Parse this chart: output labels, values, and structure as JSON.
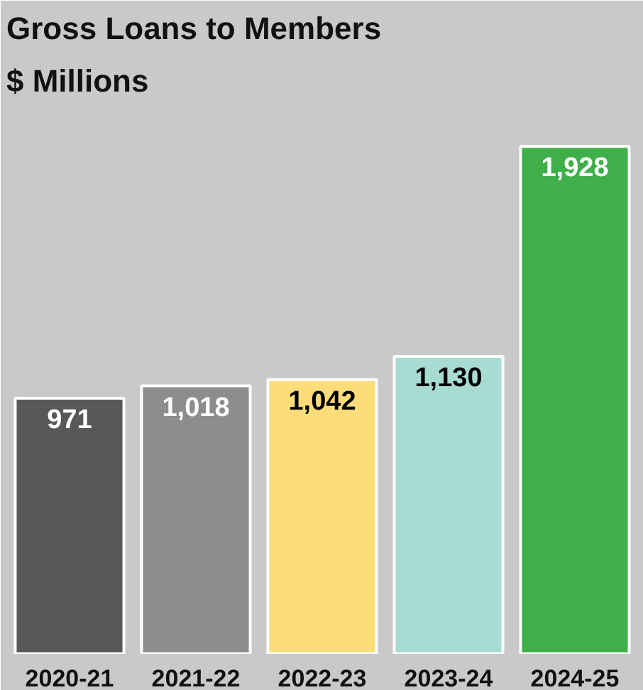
{
  "chart_data": {
    "type": "bar",
    "title": "Gross Loans to Members",
    "subtitle": "$ Millions",
    "categories": [
      "2020-21",
      "2021-22",
      "2022-23",
      "2023-24",
      "2024-25"
    ],
    "values": [
      971,
      1018,
      1042,
      1130,
      1928
    ],
    "colors": [
      "#58585a",
      "#8d8d8f",
      "#fddc7a",
      "#a8dcd2",
      "#3fb049"
    ],
    "value_labels": [
      "971",
      "1,018",
      "1,042",
      "1,130",
      "1,928"
    ],
    "grid": false
  }
}
